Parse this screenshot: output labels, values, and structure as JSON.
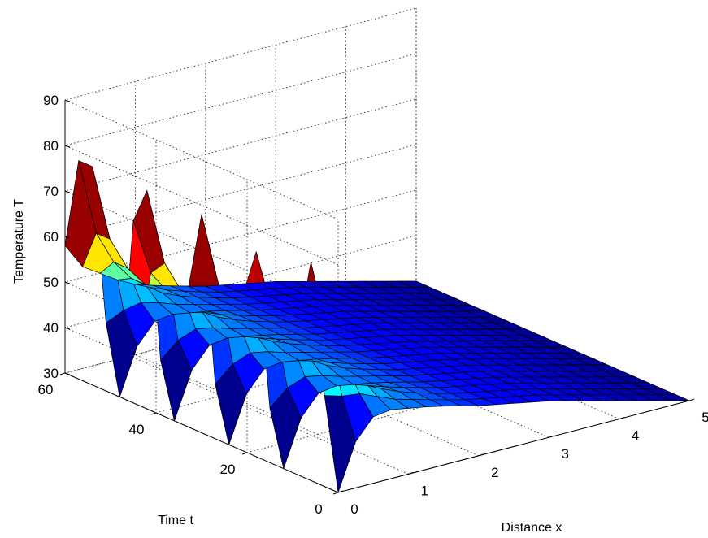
{
  "chart_data": {
    "type": "surface",
    "title": "",
    "xlabel": "Distance x",
    "ylabel": "Time t",
    "zlabel": "Temperature T",
    "xlim": [
      0,
      5
    ],
    "ylim": [
      0,
      60
    ],
    "zlim": [
      30,
      90
    ],
    "x_ticks": [
      0,
      1,
      2,
      3,
      4,
      5
    ],
    "y_ticks": [
      0,
      20,
      40,
      60
    ],
    "z_ticks": [
      30,
      40,
      50,
      60,
      70,
      80,
      90
    ],
    "grid": true,
    "colormap": "jet",
    "colormap_colors": [
      "#00008f",
      "#0000ff",
      "#00ffff",
      "#ffff00",
      "#ff0000",
      "#800000"
    ],
    "x": [
      0,
      0.25,
      0.5,
      0.75,
      1,
      1.25,
      1.5,
      1.75,
      2,
      2.25,
      2.5,
      2.75,
      3,
      3.25,
      3.5,
      3.75,
      4,
      4.25,
      4.5,
      4.75,
      5
    ],
    "t": [
      0,
      3,
      6,
      9,
      12,
      15,
      18,
      21,
      24,
      27,
      30,
      33,
      36,
      39,
      42,
      45,
      48,
      51,
      54,
      57,
      60
    ],
    "boundary_x0": {
      "description": "Temperature at x = 0 versus time t",
      "t": [
        0,
        3,
        6,
        9,
        12,
        15,
        18,
        21,
        24,
        27,
        30,
        33,
        36,
        39,
        42,
        45,
        48,
        51,
        54,
        57,
        60
      ],
      "T": [
        30,
        50,
        78,
        60,
        30,
        42,
        75,
        64,
        30,
        42,
        78,
        60,
        30,
        42,
        78,
        70,
        30,
        45,
        78,
        78,
        58
      ]
    },
    "interior": {
      "description": "Away from x = 0 the surface is nearly flat, rising from about 30 at x = 5 to about 50 near x = 0.5",
      "x": [
        0.5,
        1,
        2,
        3,
        4,
        5
      ],
      "T": [
        48,
        45,
        41,
        38,
        34,
        30
      ]
    }
  }
}
